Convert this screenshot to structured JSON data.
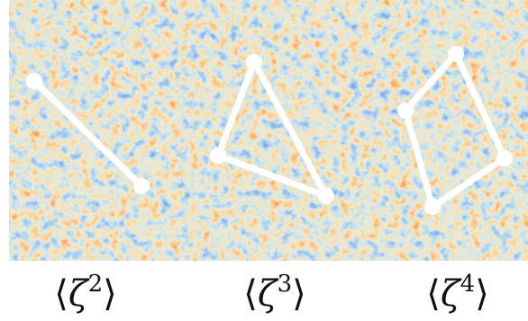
{
  "labels": [
    {
      "left": "⟨",
      "base": "ζ",
      "exponent": "2",
      "right": "⟩"
    },
    {
      "left": "⟨",
      "base": "ζ",
      "exponent": "3",
      "right": "⟩"
    },
    {
      "left": "⟨",
      "base": "ζ",
      "exponent": "4",
      "right": "⟩"
    }
  ]
}
